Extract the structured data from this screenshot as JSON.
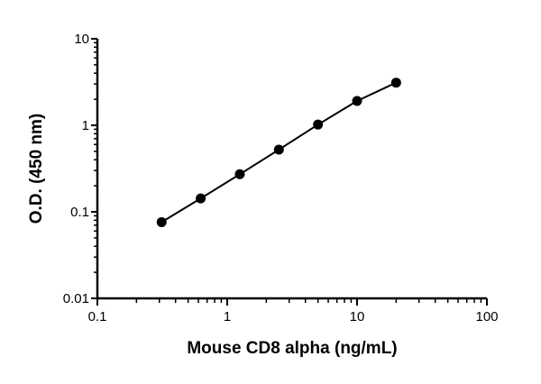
{
  "chart_data": {
    "type": "line",
    "title": "",
    "xlabel": "Mouse CD8 alpha (ng/mL)",
    "ylabel": "O.D. (450 nm)",
    "xscale": "log",
    "yscale": "log",
    "xlim": [
      0.1,
      100
    ],
    "ylim": [
      0.01,
      10
    ],
    "xticks": [
      "0.1",
      "1",
      "10",
      "100"
    ],
    "yticks": [
      "0.01",
      "0.1",
      "1",
      "10"
    ],
    "grid": false,
    "legend": "none",
    "marker": "filled-circle",
    "color": "#000000",
    "series": [
      {
        "x": [
          0.3125,
          0.625,
          1.25,
          2.5,
          5,
          10,
          20
        ],
        "y": [
          0.076,
          0.143,
          0.272,
          0.523,
          1.02,
          1.91,
          3.11
        ]
      }
    ]
  }
}
